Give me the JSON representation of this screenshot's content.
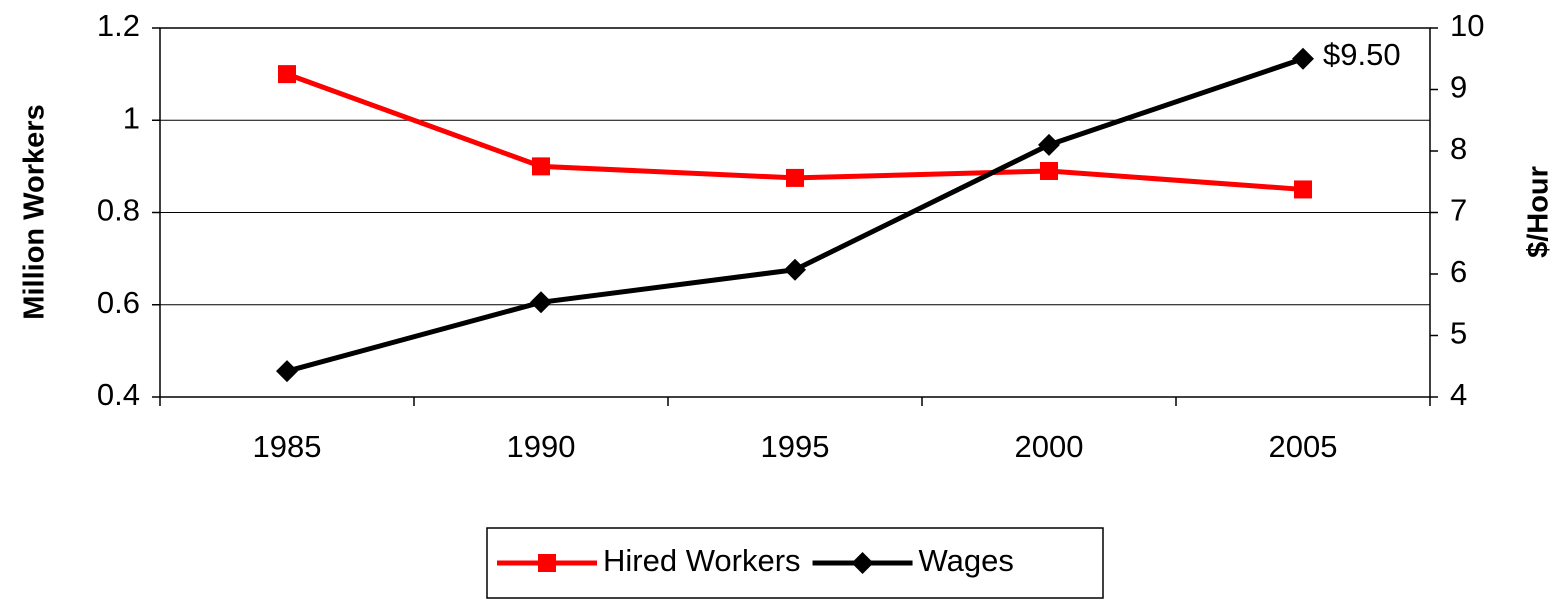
{
  "chart_data": {
    "type": "line",
    "categories": [
      "1985",
      "1990",
      "1995",
      "2000",
      "2005"
    ],
    "series": [
      {
        "name": "Hired Workers",
        "color": "#ff0000",
        "marker": "square",
        "values": [
          1.1,
          0.9,
          0.875,
          0.89,
          0.85
        ]
      },
      {
        "name": "Wages",
        "color": "#000000",
        "marker": "diamond",
        "axis": "y2",
        "values": [
          4.42,
          5.54,
          6.07,
          8.1,
          9.5
        ],
        "value_labels": [
          null,
          null,
          null,
          null,
          "$9.50"
        ]
      }
    ],
    "ylabel": "Million Workers",
    "y2label": "$/Hour",
    "ylim": [
      0.4,
      1.2
    ],
    "yticks": [
      0.4,
      0.6,
      0.8,
      1,
      1.2
    ],
    "y2lim": [
      4,
      10
    ],
    "y2ticks": [
      4,
      5,
      6,
      7,
      8,
      9,
      10
    ],
    "grid": true,
    "legend": "bottom"
  }
}
